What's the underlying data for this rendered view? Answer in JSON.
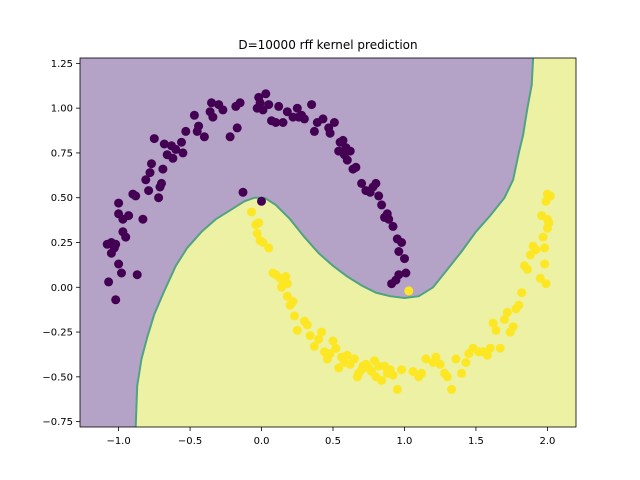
{
  "chart_data": {
    "type": "scatter",
    "title": "D=10000 rff kernel prediction",
    "xlabel": "",
    "ylabel": "",
    "xlim": [
      -1.27,
      2.2
    ],
    "ylim": [
      -0.78,
      1.28
    ],
    "x_ticks": [
      -1.0,
      -0.5,
      0.0,
      0.5,
      1.0,
      1.5,
      2.0
    ],
    "x_tick_labels": [
      "−1.0",
      "−0.5",
      "0.0",
      "0.5",
      "1.0",
      "1.5",
      "2.0"
    ],
    "y_ticks": [
      -0.75,
      -0.5,
      -0.25,
      0.0,
      0.25,
      0.5,
      0.75,
      1.0,
      1.25
    ],
    "y_tick_labels": [
      "−0.75",
      "−0.50",
      "−0.25",
      "0.00",
      "0.25",
      "0.50",
      "0.75",
      "1.00",
      "1.25"
    ],
    "grid": false,
    "legend": "none",
    "colors": {
      "class0_region": "#b4a3c6",
      "class1_region": "#ecf1a3",
      "boundary": "#4fa382",
      "class0_point": "#440154",
      "class1_point": "#fde725"
    },
    "decision_boundary": [
      [
        -0.88,
        -0.78
      ],
      [
        -0.87,
        -0.55
      ],
      [
        -0.84,
        -0.4
      ],
      [
        -0.8,
        -0.28
      ],
      [
        -0.75,
        -0.15
      ],
      [
        -0.68,
        -0.02
      ],
      [
        -0.6,
        0.12
      ],
      [
        -0.52,
        0.22
      ],
      [
        -0.42,
        0.31
      ],
      [
        -0.32,
        0.38
      ],
      [
        -0.22,
        0.43
      ],
      [
        -0.12,
        0.48
      ],
      [
        -0.05,
        0.5
      ],
      [
        0.02,
        0.5
      ],
      [
        0.1,
        0.46
      ],
      [
        0.2,
        0.38
      ],
      [
        0.3,
        0.28
      ],
      [
        0.4,
        0.19
      ],
      [
        0.5,
        0.12
      ],
      [
        0.6,
        0.06
      ],
      [
        0.7,
        0.01
      ],
      [
        0.8,
        -0.03
      ],
      [
        0.9,
        -0.05
      ],
      [
        1.0,
        -0.06
      ],
      [
        1.1,
        -0.05
      ],
      [
        1.2,
        0.0
      ],
      [
        1.3,
        0.1
      ],
      [
        1.4,
        0.2
      ],
      [
        1.5,
        0.31
      ],
      [
        1.6,
        0.4
      ],
      [
        1.7,
        0.5
      ],
      [
        1.76,
        0.6
      ],
      [
        1.8,
        0.75
      ],
      [
        1.83,
        0.85
      ],
      [
        1.86,
        1.0
      ],
      [
        1.89,
        1.13
      ],
      [
        1.9,
        1.28
      ]
    ],
    "series": [
      {
        "class": 0,
        "points": [
          [
            -1.08,
            0.24
          ],
          [
            -1.05,
            0.25
          ],
          [
            -1.03,
            0.22
          ],
          [
            -1.02,
            0.24
          ],
          [
            -1.05,
            0.19
          ],
          [
            -1.07,
            0.03
          ],
          [
            -1.02,
            -0.07
          ],
          [
            -1.0,
            0.13
          ],
          [
            -0.98,
            0.08
          ],
          [
            -0.95,
            0.28
          ],
          [
            -1.0,
            0.47
          ],
          [
            -1.0,
            0.41
          ],
          [
            -0.97,
            0.38
          ],
          [
            -0.97,
            0.31
          ],
          [
            -0.93,
            0.4
          ],
          [
            -0.9,
            0.52
          ],
          [
            -0.88,
            0.51
          ],
          [
            -0.87,
            0.07
          ],
          [
            -0.83,
            0.38
          ],
          [
            -0.81,
            0.6
          ],
          [
            -0.78,
            0.64
          ],
          [
            -0.79,
            0.54
          ],
          [
            -0.77,
            0.69
          ],
          [
            -0.75,
            0.83
          ],
          [
            -0.72,
            0.5
          ],
          [
            -0.71,
            0.56
          ],
          [
            -0.7,
            0.58
          ],
          [
            -0.69,
            0.66
          ],
          [
            -0.68,
            0.8
          ],
          [
            -0.66,
            0.74
          ],
          [
            -0.63,
            0.79
          ],
          [
            -0.62,
            0.72
          ],
          [
            -0.6,
            0.77
          ],
          [
            -0.56,
            0.81
          ],
          [
            -0.55,
            0.75
          ],
          [
            -0.53,
            0.87
          ],
          [
            -0.47,
            0.96
          ],
          [
            -0.45,
            0.87
          ],
          [
            -0.44,
            0.9
          ],
          [
            -0.4,
            0.84
          ],
          [
            -0.36,
            0.98
          ],
          [
            -0.35,
            1.03
          ],
          [
            -0.34,
            0.95
          ],
          [
            -0.3,
            1.02
          ],
          [
            -0.27,
            0.99
          ],
          [
            -0.22,
            0.84
          ],
          [
            -0.18,
            1.01
          ],
          [
            -0.17,
            0.89
          ],
          [
            -0.15,
            1.03
          ],
          [
            -0.13,
            0.53
          ],
          [
            -0.03,
            1.0
          ],
          [
            -0.02,
            1.06
          ],
          [
            -0.01,
            1.03
          ],
          [
            0.0,
            0.48
          ],
          [
            0.01,
            0.99
          ],
          [
            0.03,
            1.08
          ],
          [
            0.05,
            1.02
          ],
          [
            0.07,
            0.93
          ],
          [
            0.1,
            0.92
          ],
          [
            0.12,
            1.01
          ],
          [
            0.15,
            0.92
          ],
          [
            0.18,
            0.98
          ],
          [
            0.22,
            0.95
          ],
          [
            0.25,
            1.0
          ],
          [
            0.26,
            0.95
          ],
          [
            0.28,
            0.96
          ],
          [
            0.3,
            0.94
          ],
          [
            0.35,
            1.02
          ],
          [
            0.37,
            0.87
          ],
          [
            0.39,
            0.92
          ],
          [
            0.43,
            0.94
          ],
          [
            0.47,
            0.89
          ],
          [
            0.48,
            0.86
          ],
          [
            0.51,
            0.92
          ],
          [
            0.54,
            0.76
          ],
          [
            0.55,
            0.81
          ],
          [
            0.57,
            0.82
          ],
          [
            0.58,
            0.74
          ],
          [
            0.59,
            0.78
          ],
          [
            0.6,
            0.71
          ],
          [
            0.62,
            0.76
          ],
          [
            0.64,
            0.66
          ],
          [
            0.66,
            0.67
          ],
          [
            0.7,
            0.58
          ],
          [
            0.73,
            0.54
          ],
          [
            0.76,
            0.53
          ],
          [
            0.78,
            0.56
          ],
          [
            0.8,
            0.58
          ],
          [
            0.82,
            0.51
          ],
          [
            0.84,
            0.46
          ],
          [
            0.86,
            0.39
          ],
          [
            0.88,
            0.41
          ],
          [
            0.89,
            0.38
          ],
          [
            0.92,
            0.34
          ],
          [
            0.95,
            0.27
          ],
          [
            0.96,
            0.2
          ],
          [
            0.96,
            0.07
          ],
          [
            0.98,
            0.25
          ],
          [
            1.0,
            0.16
          ],
          [
            1.01,
            0.08
          ],
          [
            0.94,
            0.04
          ],
          [
            0.91,
            0.02
          ]
        ]
      },
      {
        "class": 1,
        "points": [
          [
            -0.07,
            0.42
          ],
          [
            -0.04,
            0.35
          ],
          [
            -0.02,
            0.36
          ],
          [
            -0.03,
            0.3
          ],
          [
            -0.01,
            0.26
          ],
          [
            0.01,
            0.25
          ],
          [
            0.05,
            0.22
          ],
          [
            0.08,
            0.08
          ],
          [
            0.1,
            0.07
          ],
          [
            0.13,
            0.05
          ],
          [
            0.14,
            0.0
          ],
          [
            0.15,
            0.04
          ],
          [
            0.17,
            0.06
          ],
          [
            0.18,
            0.02
          ],
          [
            0.18,
            -0.05
          ],
          [
            0.2,
            -0.1
          ],
          [
            0.22,
            -0.08
          ],
          [
            0.23,
            -0.16
          ],
          [
            0.25,
            -0.24
          ],
          [
            0.3,
            -0.19
          ],
          [
            0.32,
            -0.21
          ],
          [
            0.34,
            -0.27
          ],
          [
            0.37,
            -0.33
          ],
          [
            0.4,
            -0.29
          ],
          [
            0.42,
            -0.25
          ],
          [
            0.44,
            -0.36
          ],
          [
            0.46,
            -0.4
          ],
          [
            0.48,
            -0.37
          ],
          [
            0.5,
            -0.3
          ],
          [
            0.52,
            -0.34
          ],
          [
            0.54,
            -0.45
          ],
          [
            0.56,
            -0.39
          ],
          [
            0.58,
            -0.42
          ],
          [
            0.6,
            -0.38
          ],
          [
            0.62,
            -0.43
          ],
          [
            0.65,
            -0.4
          ],
          [
            0.67,
            -0.5
          ],
          [
            0.68,
            -0.48
          ],
          [
            0.7,
            -0.46
          ],
          [
            0.71,
            -0.44
          ],
          [
            0.73,
            -0.43
          ],
          [
            0.75,
            -0.45
          ],
          [
            0.77,
            -0.47
          ],
          [
            0.79,
            -0.41
          ],
          [
            0.8,
            -0.5
          ],
          [
            0.82,
            -0.44
          ],
          [
            0.84,
            -0.52
          ],
          [
            0.86,
            -0.44
          ],
          [
            0.88,
            -0.48
          ],
          [
            0.9,
            -0.46
          ],
          [
            0.92,
            -0.49
          ],
          [
            0.95,
            -0.57
          ],
          [
            0.98,
            -0.46
          ],
          [
            1.03,
            -0.02
          ],
          [
            1.06,
            -0.47
          ],
          [
            1.1,
            -0.5
          ],
          [
            1.12,
            -0.48
          ],
          [
            1.15,
            -0.4
          ],
          [
            1.2,
            -0.42
          ],
          [
            1.22,
            -0.39
          ],
          [
            1.25,
            -0.43
          ],
          [
            1.28,
            -0.48
          ],
          [
            1.3,
            -0.5
          ],
          [
            1.33,
            -0.57
          ],
          [
            1.36,
            -0.4
          ],
          [
            1.4,
            -0.48
          ],
          [
            1.43,
            -0.42
          ],
          [
            1.45,
            -0.37
          ],
          [
            1.48,
            -0.34
          ],
          [
            1.52,
            -0.36
          ],
          [
            1.55,
            -0.36
          ],
          [
            1.58,
            -0.38
          ],
          [
            1.6,
            -0.34
          ],
          [
            1.62,
            -0.2
          ],
          [
            1.64,
            -0.24
          ],
          [
            1.67,
            -0.34
          ],
          [
            1.7,
            -0.18
          ],
          [
            1.72,
            -0.14
          ],
          [
            1.74,
            -0.25
          ],
          [
            1.76,
            -0.22
          ],
          [
            1.78,
            -0.12
          ],
          [
            1.8,
            -0.1
          ],
          [
            1.82,
            -0.03
          ],
          [
            1.84,
            0.12
          ],
          [
            1.86,
            0.1
          ],
          [
            1.88,
            0.18
          ],
          [
            1.9,
            0.23
          ],
          [
            1.92,
            0.21
          ],
          [
            1.95,
            0.05
          ],
          [
            1.96,
            0.4
          ],
          [
            1.97,
            0.28
          ],
          [
            1.98,
            0.22
          ],
          [
            1.99,
            0.48
          ],
          [
            2.0,
            0.33
          ],
          [
            2.0,
            0.52
          ],
          [
            2.01,
            0.36
          ],
          [
            1.98,
            0.13
          ],
          [
            1.99,
            0.02
          ],
          [
            2.02,
            0.51
          ],
          [
            2.0,
            0.38
          ]
        ]
      }
    ]
  }
}
